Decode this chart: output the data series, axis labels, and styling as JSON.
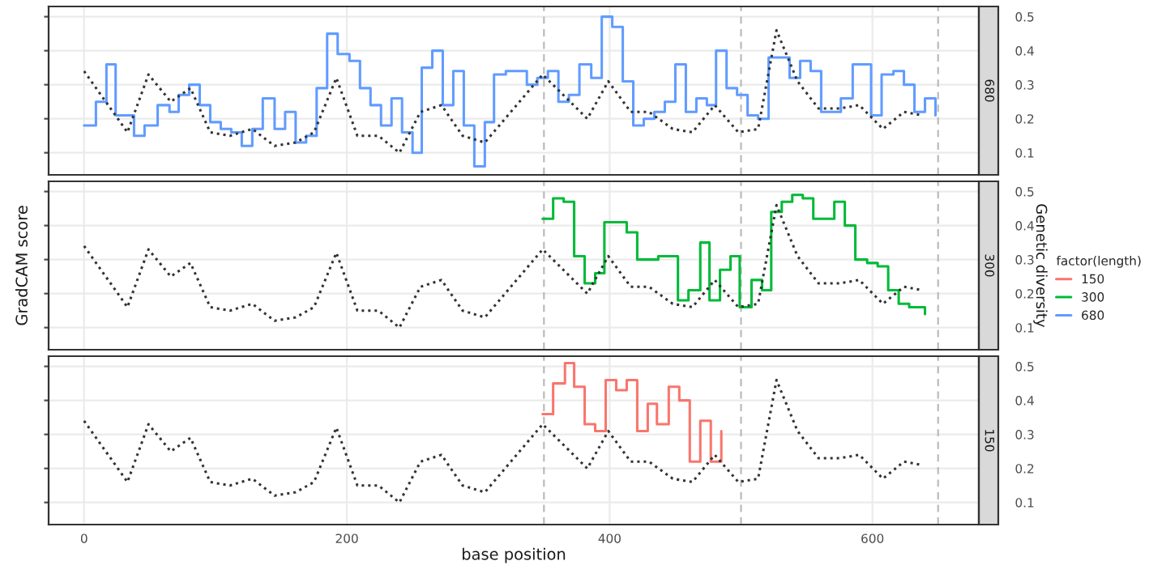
{
  "chart_data": [
    {
      "type": "line",
      "title": "680",
      "xlim": [
        -27,
        681
      ],
      "xticks": [
        0,
        200,
        400,
        600
      ],
      "tick_labels": "y",
      "ylim": [
        0.035,
        0.53
      ],
      "yticks": [
        0.1,
        0.2,
        0.3,
        0.4,
        0.5
      ],
      "grid": true,
      "legend": "right",
      "ref_lines": [
        {
          "axis": "x",
          "value": 350,
          "color": "#bbbbbb",
          "line_style": "dashed"
        },
        {
          "axis": "x",
          "value": 500,
          "color": "#bbbbbb",
          "line_style": "dashed"
        },
        {
          "axis": "x",
          "value": 650,
          "color": "#bbbbbb",
          "line_style": "dashed"
        }
      ],
      "series": [
        {
          "type": "step",
          "name": "680",
          "color": "#619cff",
          "x": [
            0,
            9,
            17,
            24,
            38,
            46,
            56,
            65,
            72,
            80,
            88,
            96,
            104,
            112,
            120,
            128,
            136,
            145,
            153,
            161,
            169,
            177,
            185,
            193,
            202,
            210,
            218,
            226,
            234,
            242,
            250,
            257,
            265,
            273,
            281,
            289,
            297,
            305,
            312,
            321,
            337,
            345,
            353,
            361,
            369,
            377,
            386,
            394,
            402,
            410,
            418,
            426,
            434,
            442,
            450,
            458,
            466,
            474,
            481,
            489,
            497,
            505,
            513,
            521,
            537,
            545,
            553,
            561,
            576,
            585,
            599,
            607,
            616,
            624,
            632,
            640,
            648
          ],
          "values": [
            0.18,
            0.25,
            0.36,
            0.21,
            0.15,
            0.18,
            0.24,
            0.22,
            0.27,
            0.3,
            0.24,
            0.19,
            0.17,
            0.16,
            0.12,
            0.17,
            0.26,
            0.17,
            0.22,
            0.13,
            0.15,
            0.29,
            0.45,
            0.39,
            0.37,
            0.29,
            0.24,
            0.18,
            0.26,
            0.16,
            0.1,
            0.35,
            0.4,
            0.24,
            0.34,
            0.18,
            0.06,
            0.19,
            0.33,
            0.34,
            0.3,
            0.32,
            0.34,
            0.25,
            0.27,
            0.36,
            0.32,
            0.5,
            0.47,
            0.31,
            0.18,
            0.2,
            0.22,
            0.25,
            0.36,
            0.22,
            0.26,
            0.24,
            0.4,
            0.29,
            0.27,
            0.21,
            0.2,
            0.38,
            0.32,
            0.37,
            0.34,
            0.22,
            0.26,
            0.36,
            0.21,
            0.33,
            0.34,
            0.3,
            0.22,
            0.26,
            0.21
          ]
        },
        {
          "type": "line",
          "color": "#333333",
          "line_style": "dotted",
          "x": [
            0,
            33,
            49,
            66,
            81,
            96,
            111,
            128,
            145,
            161,
            175,
            192,
            208,
            224,
            240,
            256,
            272,
            288,
            305,
            349,
            383,
            399,
            416,
            430,
            448,
            463,
            480,
            498,
            513,
            527,
            543,
            559,
            575,
            590,
            608,
            624,
            638
          ],
          "values": [
            0.34,
            0.16,
            0.33,
            0.25,
            0.29,
            0.16,
            0.15,
            0.17,
            0.12,
            0.13,
            0.16,
            0.32,
            0.15,
            0.15,
            0.1,
            0.22,
            0.24,
            0.15,
            0.13,
            0.33,
            0.2,
            0.31,
            0.22,
            0.22,
            0.17,
            0.16,
            0.24,
            0.16,
            0.17,
            0.46,
            0.31,
            0.23,
            0.23,
            0.24,
            0.17,
            0.22,
            0.21
          ]
        }
      ]
    },
    {
      "type": "line",
      "title": "300",
      "ylabel": "GradCAM score",
      "y2label": "Genetic diversity",
      "legend_title": "factor(length)",
      "xlim": [
        -27,
        681
      ],
      "xticks": [
        0,
        200,
        400,
        600
      ],
      "tick_labels": "y",
      "ylim": [
        0.035,
        0.53
      ],
      "yticks": [
        0.1,
        0.2,
        0.3,
        0.4,
        0.5
      ],
      "grid": true,
      "legend": "right",
      "ref_lines": [
        {
          "axis": "x",
          "value": 350,
          "color": "#bbbbbb",
          "line_style": "dashed"
        },
        {
          "axis": "x",
          "value": 500,
          "color": "#bbbbbb",
          "line_style": "dashed"
        },
        {
          "axis": "x",
          "value": 650,
          "color": "#bbbbbb",
          "line_style": "dashed"
        }
      ],
      "series": [
        {
          "type": "step",
          "name": "300",
          "color": "#00ba38",
          "x": [
            349,
            357,
            365,
            373,
            381,
            389,
            396,
            405,
            413,
            421,
            429,
            437,
            445,
            452,
            460,
            469,
            476,
            484,
            492,
            499,
            508,
            516,
            523,
            531,
            539,
            547,
            555,
            563,
            571,
            579,
            587,
            596,
            604,
            612,
            620,
            628,
            640
          ],
          "values": [
            0.42,
            0.48,
            0.47,
            0.31,
            0.23,
            0.26,
            0.41,
            0.41,
            0.38,
            0.3,
            0.3,
            0.31,
            0.31,
            0.18,
            0.21,
            0.35,
            0.18,
            0.27,
            0.31,
            0.16,
            0.24,
            0.21,
            0.44,
            0.47,
            0.49,
            0.48,
            0.42,
            0.42,
            0.47,
            0.4,
            0.3,
            0.29,
            0.28,
            0.21,
            0.17,
            0.16,
            0.14
          ]
        },
        {
          "type": "line",
          "color": "#333333",
          "line_style": "dotted",
          "x": [
            0,
            33,
            49,
            66,
            81,
            96,
            111,
            128,
            145,
            161,
            175,
            192,
            208,
            224,
            240,
            256,
            272,
            288,
            305,
            349,
            383,
            399,
            416,
            430,
            448,
            463,
            480,
            498,
            513,
            527,
            543,
            559,
            575,
            590,
            608,
            624,
            638
          ],
          "values": [
            0.34,
            0.16,
            0.33,
            0.25,
            0.29,
            0.16,
            0.15,
            0.17,
            0.12,
            0.13,
            0.16,
            0.32,
            0.15,
            0.15,
            0.1,
            0.22,
            0.24,
            0.15,
            0.13,
            0.33,
            0.2,
            0.31,
            0.22,
            0.22,
            0.17,
            0.16,
            0.24,
            0.16,
            0.17,
            0.46,
            0.31,
            0.23,
            0.23,
            0.24,
            0.17,
            0.22,
            0.21
          ]
        }
      ]
    },
    {
      "type": "line",
      "title": "150",
      "xlabel": "base position",
      "xlim": [
        -27,
        681
      ],
      "xticks": [
        0,
        200,
        400,
        600
      ],
      "ylim": [
        0.035,
        0.53
      ],
      "yticks": [
        0.1,
        0.2,
        0.3,
        0.4,
        0.5
      ],
      "grid": true,
      "legend": "right",
      "ref_lines": [
        {
          "axis": "x",
          "value": 350,
          "color": "#bbbbbb",
          "line_style": "dashed"
        },
        {
          "axis": "x",
          "value": 500,
          "color": "#bbbbbb",
          "line_style": "dashed"
        },
        {
          "axis": "x",
          "value": 650,
          "color": "#bbbbbb",
          "line_style": "dashed"
        }
      ],
      "series": [
        {
          "type": "step",
          "name": "150",
          "color": "#f8766d",
          "x": [
            349,
            357,
            366,
            373,
            381,
            389,
            397,
            405,
            413,
            421,
            429,
            436,
            445,
            453,
            461,
            469,
            477,
            485
          ],
          "values": [
            0.36,
            0.45,
            0.51,
            0.44,
            0.33,
            0.31,
            0.46,
            0.43,
            0.46,
            0.31,
            0.39,
            0.33,
            0.44,
            0.4,
            0.22,
            0.34,
            0.22,
            0.31
          ]
        },
        {
          "type": "line",
          "color": "#333333",
          "line_style": "dotted",
          "x": [
            0,
            33,
            49,
            66,
            81,
            96,
            111,
            128,
            145,
            161,
            175,
            192,
            208,
            224,
            240,
            256,
            272,
            288,
            305,
            349,
            383,
            399,
            416,
            430,
            448,
            463,
            480,
            498,
            513,
            527,
            543,
            559,
            575,
            590,
            608,
            624,
            638
          ],
          "values": [
            0.34,
            0.16,
            0.33,
            0.25,
            0.29,
            0.16,
            0.15,
            0.17,
            0.12,
            0.13,
            0.16,
            0.32,
            0.15,
            0.15,
            0.1,
            0.22,
            0.24,
            0.15,
            0.13,
            0.33,
            0.2,
            0.31,
            0.22,
            0.22,
            0.17,
            0.16,
            0.24,
            0.16,
            0.17,
            0.46,
            0.31,
            0.23,
            0.23,
            0.24,
            0.17,
            0.22,
            0.21
          ]
        }
      ]
    }
  ]
}
